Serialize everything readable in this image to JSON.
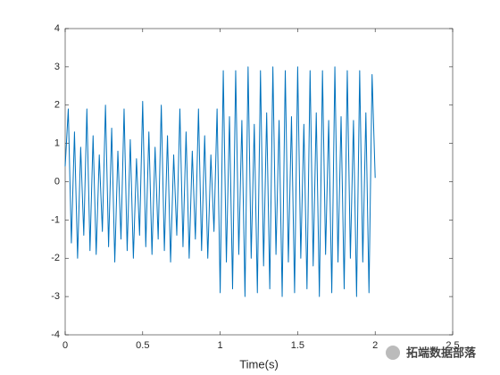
{
  "chart_data": {
    "type": "line",
    "xlabel": "Time(s)",
    "color": "#0072bd",
    "x": [
      0,
      0.02,
      0.04,
      0.06,
      0.08,
      0.1,
      0.12,
      0.14,
      0.16,
      0.18,
      0.2,
      0.22,
      0.24,
      0.26,
      0.28,
      0.3,
      0.32,
      0.34,
      0.36,
      0.38,
      0.4,
      0.42,
      0.44,
      0.46,
      0.48,
      0.5,
      0.52,
      0.54,
      0.56,
      0.58,
      0.6,
      0.62,
      0.64,
      0.66,
      0.68,
      0.7,
      0.72,
      0.74,
      0.76,
      0.78,
      0.8,
      0.82,
      0.84,
      0.86,
      0.88,
      0.9,
      0.92,
      0.94,
      0.96,
      0.98,
      1,
      1.02,
      1.04,
      1.06,
      1.08,
      1.1,
      1.12,
      1.14,
      1.16,
      1.18,
      1.2,
      1.22,
      1.24,
      1.26,
      1.28,
      1.3,
      1.32,
      1.34,
      1.36,
      1.38,
      1.4,
      1.42,
      1.44,
      1.46,
      1.48,
      1.5,
      1.52,
      1.54,
      1.56,
      1.58,
      1.6,
      1.62,
      1.64,
      1.66,
      1.68,
      1.7,
      1.72,
      1.74,
      1.76,
      1.78,
      1.8,
      1.82,
      1.84,
      1.86,
      1.88,
      1.9,
      1.92,
      1.94,
      1.96,
      1.98,
      2
    ],
    "values": [
      0.4,
      1.9,
      -1.6,
      1.3,
      -2.0,
      0.9,
      -1.4,
      1.9,
      -1.8,
      1.2,
      -1.9,
      0.7,
      -1.3,
      2.0,
      -1.7,
      1.4,
      -2.1,
      0.8,
      -1.5,
      1.9,
      -1.8,
      1.1,
      -2.0,
      0.6,
      -1.4,
      2.1,
      -1.7,
      1.3,
      -1.9,
      0.9,
      -1.5,
      2.0,
      -1.8,
      1.2,
      -2.1,
      0.7,
      -1.4,
      1.9,
      -1.7,
      1.3,
      -2.0,
      0.8,
      -1.5,
      1.9,
      -1.8,
      1.2,
      -2.0,
      0.7,
      -1.3,
      1.9,
      -2.9,
      2.9,
      -2.1,
      1.7,
      -2.8,
      2.9,
      -1.9,
      1.6,
      -3.0,
      3.0,
      -2.0,
      1.5,
      -2.9,
      2.9,
      -2.2,
      1.8,
      -2.8,
      3.0,
      -1.9,
      1.6,
      -3.0,
      2.9,
      -2.1,
      1.7,
      -2.9,
      3.0,
      -2.0,
      1.5,
      -2.8,
      2.9,
      -2.2,
      1.8,
      -3.0,
      2.9,
      -1.9,
      1.6,
      -2.9,
      3.0,
      -2.1,
      1.7,
      -2.8,
      2.9,
      -2.0,
      1.6,
      -3.0,
      2.9,
      -2.1,
      1.8,
      -2.9,
      2.8,
      0.1
    ],
    "xlim": [
      0,
      2.5
    ],
    "xticks": [
      0,
      0.5,
      1,
      1.5,
      2,
      2.5
    ],
    "ylim": [
      -4,
      4
    ],
    "yticks": [
      -4,
      -3,
      -2,
      -1,
      0,
      1,
      2,
      3,
      4
    ],
    "grid": false
  },
  "watermark": "拓端数据部落"
}
